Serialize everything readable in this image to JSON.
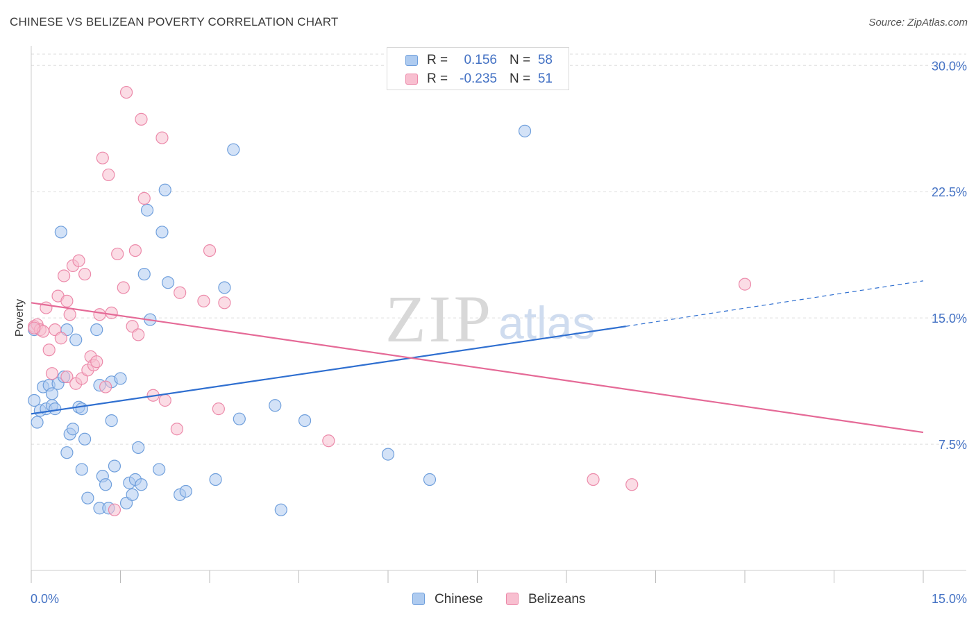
{
  "header": {
    "title": "CHINESE VS BELIZEAN POVERTY CORRELATION CHART",
    "source": "Source: ZipAtlas.com"
  },
  "watermark": {
    "zip": "ZIP",
    "atlas": "atlas"
  },
  "legend_top": [
    {
      "r_label": "R =",
      "r_value": "0.156",
      "n_label": "N =",
      "n_value": "58"
    },
    {
      "r_label": "R =",
      "r_value": "-0.235",
      "n_label": "N =",
      "n_value": "51"
    }
  ],
  "legend_bottom": [
    {
      "label": "Chinese"
    },
    {
      "label": "Belizeans"
    }
  ],
  "colors": {
    "chinese_fill": "#aecbf0",
    "chinese_stroke": "#6f9fdc",
    "chinese_line": "#2f6fd0",
    "belizean_fill": "#f8bfd0",
    "belizean_stroke": "#ec8aaa",
    "belizean_line": "#e56a97",
    "tick_label": "#4472c4",
    "grid": "#dddddd"
  },
  "chart_data": {
    "type": "scatter",
    "title": "CHINESE VS BELIZEAN POVERTY CORRELATION CHART",
    "xlabel": "",
    "ylabel": "Poverty",
    "xlim": [
      0,
      15
    ],
    "ylim": [
      0,
      31
    ],
    "x_tick_labels": [
      "0.0%",
      "15.0%"
    ],
    "y_ticks": [
      7.5,
      15.0,
      22.5,
      30.0
    ],
    "y_tick_labels": [
      "7.5%",
      "15.0%",
      "22.5%",
      "30.0%"
    ],
    "grid": true,
    "series": [
      {
        "name": "Chinese",
        "r": 0.156,
        "n": 58,
        "trend": {
          "x0": 0,
          "y0": 9.3,
          "x1": 10.0,
          "y1": 14.5,
          "dashed_to_x": 15,
          "dashed_to_y": 17.2
        },
        "points": [
          [
            0.05,
            14.3
          ],
          [
            0.05,
            10.1
          ],
          [
            0.1,
            8.8
          ],
          [
            0.15,
            9.5
          ],
          [
            0.2,
            10.9
          ],
          [
            0.25,
            9.6
          ],
          [
            0.3,
            11.0
          ],
          [
            0.35,
            9.8
          ],
          [
            0.35,
            10.5
          ],
          [
            0.4,
            9.6
          ],
          [
            0.45,
            11.1
          ],
          [
            0.5,
            20.1
          ],
          [
            0.55,
            11.5
          ],
          [
            0.6,
            14.3
          ],
          [
            0.6,
            7.0
          ],
          [
            0.65,
            8.1
          ],
          [
            0.7,
            8.4
          ],
          [
            0.75,
            13.7
          ],
          [
            0.8,
            9.7
          ],
          [
            0.85,
            6.0
          ],
          [
            0.85,
            9.6
          ],
          [
            0.9,
            7.8
          ],
          [
            0.95,
            4.3
          ],
          [
            1.1,
            14.3
          ],
          [
            1.15,
            11.0
          ],
          [
            1.15,
            3.7
          ],
          [
            1.2,
            5.6
          ],
          [
            1.25,
            5.1
          ],
          [
            1.3,
            3.7
          ],
          [
            1.35,
            11.2
          ],
          [
            1.35,
            8.9
          ],
          [
            1.4,
            6.2
          ],
          [
            1.5,
            11.4
          ],
          [
            1.6,
            4.0
          ],
          [
            1.65,
            5.2
          ],
          [
            1.7,
            4.5
          ],
          [
            1.75,
            5.4
          ],
          [
            1.8,
            7.3
          ],
          [
            1.85,
            5.1
          ],
          [
            1.9,
            17.6
          ],
          [
            1.95,
            21.4
          ],
          [
            2.0,
            14.9
          ],
          [
            2.15,
            6.0
          ],
          [
            2.2,
            20.1
          ],
          [
            2.25,
            22.6
          ],
          [
            2.3,
            17.1
          ],
          [
            2.5,
            4.5
          ],
          [
            2.6,
            4.7
          ],
          [
            3.1,
            5.4
          ],
          [
            3.25,
            16.8
          ],
          [
            3.4,
            25.0
          ],
          [
            3.5,
            9.0
          ],
          [
            4.1,
            9.8
          ],
          [
            4.2,
            3.6
          ],
          [
            4.6,
            8.9
          ],
          [
            6.0,
            6.9
          ],
          [
            6.7,
            5.4
          ],
          [
            8.3,
            26.1
          ]
        ]
      },
      {
        "name": "Belizeans",
        "r": -0.235,
        "n": 51,
        "trend": {
          "x0": 0,
          "y0": 15.9,
          "x1": 15,
          "y1": 8.2
        },
        "points": [
          [
            0.05,
            14.5
          ],
          [
            0.1,
            14.6
          ],
          [
            0.15,
            14.3
          ],
          [
            0.2,
            14.2
          ],
          [
            0.25,
            15.6
          ],
          [
            0.3,
            13.1
          ],
          [
            0.35,
            11.7
          ],
          [
            0.4,
            14.3
          ],
          [
            0.45,
            16.3
          ],
          [
            0.5,
            13.8
          ],
          [
            0.55,
            17.5
          ],
          [
            0.6,
            11.5
          ],
          [
            0.6,
            16.0
          ],
          [
            0.65,
            15.2
          ],
          [
            0.7,
            18.1
          ],
          [
            0.75,
            11.1
          ],
          [
            0.8,
            18.4
          ],
          [
            0.85,
            11.4
          ],
          [
            0.9,
            17.6
          ],
          [
            0.95,
            11.9
          ],
          [
            1.0,
            12.7
          ],
          [
            1.05,
            12.2
          ],
          [
            1.1,
            12.4
          ],
          [
            1.15,
            15.2
          ],
          [
            1.2,
            24.5
          ],
          [
            1.25,
            10.9
          ],
          [
            1.3,
            23.5
          ],
          [
            1.35,
            15.3
          ],
          [
            1.4,
            3.6
          ],
          [
            1.45,
            18.8
          ],
          [
            1.55,
            16.8
          ],
          [
            1.6,
            28.4
          ],
          [
            1.7,
            14.5
          ],
          [
            1.75,
            19.0
          ],
          [
            1.8,
            14.0
          ],
          [
            1.85,
            26.8
          ],
          [
            1.9,
            22.1
          ],
          [
            2.05,
            10.4
          ],
          [
            2.2,
            25.7
          ],
          [
            2.25,
            10.1
          ],
          [
            2.45,
            8.4
          ],
          [
            2.5,
            16.5
          ],
          [
            2.9,
            16.0
          ],
          [
            3.0,
            19.0
          ],
          [
            3.15,
            9.6
          ],
          [
            3.25,
            15.9
          ],
          [
            5.0,
            7.7
          ],
          [
            9.45,
            5.4
          ],
          [
            10.1,
            5.1
          ],
          [
            12.0,
            17.0
          ],
          [
            0.05,
            14.4
          ]
        ]
      }
    ]
  }
}
